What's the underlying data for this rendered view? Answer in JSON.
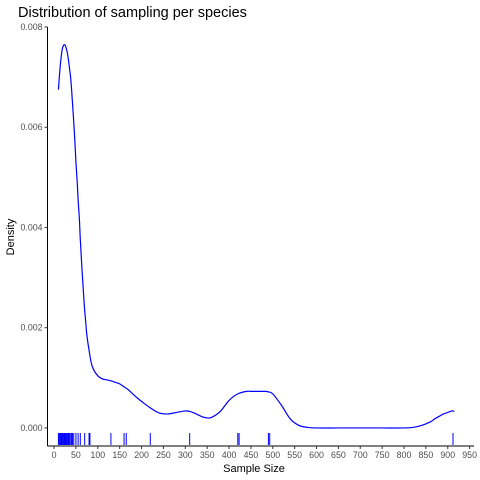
{
  "chart_data": {
    "type": "line",
    "title": "Distribution of sampling per species",
    "xlabel": "Sample Size",
    "ylabel": "Density",
    "xlim": [
      -15,
      960
    ],
    "ylim": [
      -0.00036,
      0.008
    ],
    "x_ticks": [
      0,
      50,
      100,
      150,
      200,
      250,
      300,
      350,
      400,
      450,
      500,
      550,
      600,
      650,
      700,
      750,
      800,
      850,
      900,
      950
    ],
    "y_ticks": [
      0.0,
      0.002,
      0.004,
      0.006,
      0.008
    ],
    "y_tick_labels": [
      "0.000",
      "0.002",
      "0.004",
      "0.006",
      "0.008"
    ],
    "grid": false,
    "legend": "none",
    "line_color": "#0000ff",
    "rug_color": "#0000ff",
    "series": [
      {
        "x": [
          10,
          12,
          15,
          18,
          20,
          22,
          25,
          28,
          30,
          32,
          35,
          38,
          40,
          42,
          45,
          48,
          50,
          53,
          55,
          58,
          60,
          65,
          68,
          70,
          73,
          75,
          80,
          85,
          90,
          100,
          110,
          120,
          130,
          140,
          150,
          160,
          170,
          180,
          190,
          200,
          220,
          240,
          260,
          280,
          300,
          310,
          320,
          340,
          350,
          360,
          380,
          400,
          420,
          440,
          450,
          460,
          470,
          480,
          490,
          500,
          520,
          540,
          560,
          580,
          600,
          650,
          700,
          750,
          800,
          820,
          840,
          860,
          870,
          880,
          890,
          900,
          910,
          915
        ],
        "y": [
          0.00675,
          0.007,
          0.0073,
          0.00752,
          0.0076,
          0.00764,
          0.00764,
          0.00757,
          0.0075,
          0.0074,
          0.0072,
          0.00698,
          0.00676,
          0.0065,
          0.0061,
          0.00565,
          0.0053,
          0.0049,
          0.00455,
          0.00415,
          0.00376,
          0.003,
          0.0026,
          0.00235,
          0.00205,
          0.00185,
          0.00155,
          0.0013,
          0.00117,
          0.00104,
          0.00098,
          0.00096,
          0.00094,
          0.00091,
          0.00088,
          0.00082,
          0.00076,
          0.00068,
          0.0006,
          0.00053,
          0.0004,
          0.0003,
          0.00028,
          0.00031,
          0.00034,
          0.00033,
          0.0003,
          0.00022,
          0.0002,
          0.00021,
          0.00033,
          0.00055,
          0.00068,
          0.00073,
          0.00073,
          0.00073,
          0.00073,
          0.00073,
          0.00072,
          0.00068,
          0.00045,
          0.00018,
          5e-05,
          1e-05,
          0.0,
          0.0,
          0.0,
          0.0,
          0.0,
          1e-05,
          5e-05,
          0.00012,
          0.00018,
          0.00023,
          0.00028,
          0.00031,
          0.00034,
          0.00033
        ]
      }
    ],
    "rug": [
      10,
      12,
      14,
      16,
      18,
      20,
      21,
      23,
      25,
      27,
      29,
      31,
      33,
      35,
      37,
      40,
      42,
      45,
      50,
      55,
      60,
      70,
      80,
      82,
      130,
      160,
      165,
      220,
      310,
      420,
      423,
      490,
      493,
      912
    ]
  }
}
